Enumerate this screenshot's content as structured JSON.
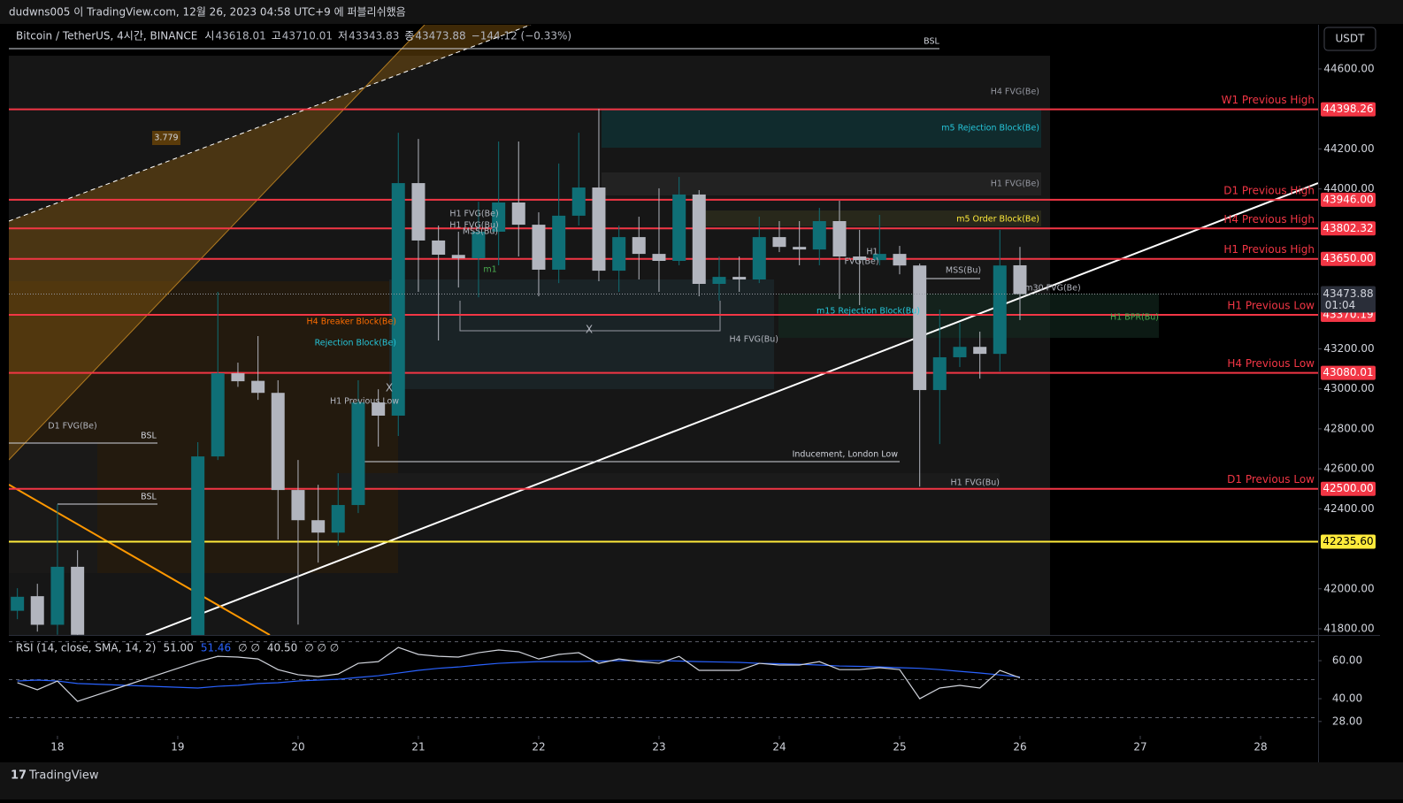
{
  "header": {
    "published": "dudwns005 이 TradingView.com, 12월 26, 2023 04:58 UTC+9 에 퍼블리쉬했음",
    "brand": "TradingView",
    "currency": "USDT"
  },
  "chart_data": {
    "type": "candlestick",
    "legend": {
      "symbol": "Bitcoin / TetherUS, 4시간, BINANCE",
      "open_label": "시",
      "high_label": "고",
      "low_label": "저",
      "close_label": "종",
      "change": "−144.12 (−0.33%)"
    },
    "candles": {
      "x": [
        17.667,
        17.833,
        18,
        18.167,
        19.167,
        19.333,
        19.5,
        19.667,
        19.833,
        20,
        20.167,
        20.333,
        20.5,
        20.667,
        20.833,
        21,
        21.167,
        21.333,
        21.5,
        21.667,
        21.833,
        22,
        22.167,
        22.333,
        22.5,
        22.667,
        22.833,
        23,
        23.167,
        23.333,
        23.5,
        23.667,
        23.833,
        24,
        24.167,
        24.333,
        24.5,
        24.667,
        24.833,
        25,
        25.167,
        25.333,
        25.5,
        25.667,
        25.833,
        26
      ],
      "open": [
        41890,
        41963,
        41820,
        42110,
        41750,
        42662,
        43078,
        43040,
        42980,
        42494,
        42343,
        42281,
        42419,
        42932,
        42866,
        44029,
        43742,
        43670,
        43653,
        43786,
        43932,
        43821,
        43596,
        43866,
        44007,
        43591,
        43759,
        43675,
        43640,
        43972,
        43525,
        43560,
        43547,
        43759,
        43710,
        43697,
        43839,
        43662,
        43644,
        43675,
        43617,
        42994,
        43158,
        43210,
        43175,
        43618.01
      ],
      "high": [
        42003,
        42025,
        42423,
        42193,
        42733,
        43485,
        43131,
        43264,
        43043,
        42644,
        42520,
        42578,
        43043,
        42998,
        44281,
        44250,
        43817,
        43786,
        43936,
        44237,
        44237,
        43883,
        44127,
        44281,
        44401,
        43817,
        43861,
        44003,
        44060,
        43994,
        43662,
        43662,
        43861,
        43839,
        43839,
        43905,
        43941,
        43795,
        43870,
        43715,
        43627,
        43396,
        43330,
        43286,
        43795,
        43710.01
      ],
      "low": [
        41848,
        41786,
        41770,
        41700,
        41650,
        42644,
        43010,
        42945,
        42246,
        41821,
        42131,
        42215,
        42379,
        42711,
        42764,
        43485,
        43242,
        43507,
        43458,
        43618,
        43662,
        43463,
        43529,
        43817,
        43538,
        43485,
        43547,
        43485,
        43618,
        43463,
        43441,
        43485,
        43529,
        43684,
        43618,
        43618,
        43450,
        43419,
        43618,
        43573,
        42511,
        42724,
        43109,
        43051,
        43087,
        43343.83
      ],
      "close": [
        41960,
        41820,
        42110,
        41770,
        42662,
        43078,
        43038,
        42980,
        42494,
        42343,
        42281,
        42419,
        42932,
        42866,
        44029,
        43742,
        43671,
        43653,
        43786,
        43932,
        43821,
        43596,
        43866,
        44007,
        43591,
        43759,
        43675,
        43640,
        43972,
        43525,
        43560,
        43547,
        43759,
        43710,
        43697,
        43839,
        43662,
        43644,
        43675,
        43617,
        42994,
        43158,
        43210,
        43175,
        43617,
        43473.88
      ],
      "up_color": "#0f6f76",
      "down_color": "#b2b5be"
    },
    "countdown": "01:04",
    "xlim": [
      17.596,
      28.478
    ],
    "xticks": [
      18,
      19,
      20,
      21,
      22,
      23,
      24,
      25,
      26,
      27,
      28
    ],
    "ylim": [
      41769,
      44821
    ],
    "yticks": [
      {
        "value": 44600,
        "label": "44600.00"
      },
      {
        "value": 44200,
        "label": "44200.00"
      },
      {
        "value": 44000,
        "label": "44000.00"
      },
      {
        "value": 43200,
        "label": "43200.00"
      },
      {
        "value": 43000,
        "label": "43000.00"
      },
      {
        "value": 42800,
        "label": "42800.00"
      },
      {
        "value": 42600,
        "label": "42600.00"
      },
      {
        "value": 42400,
        "label": "42400.00"
      },
      {
        "value": 42000,
        "label": "42000.00"
      },
      {
        "value": 41800,
        "label": "41800.00"
      }
    ],
    "levels": {
      "names": [
        "W1 Previous High",
        "D1 Previous High",
        "H4 Previous High",
        "H1 Previous High",
        "H1 Previous Low",
        "H4 Previous Low",
        "D1 Previous Low",
        null
      ],
      "values": [
        44398.26,
        43946,
        43802.32,
        43650,
        43370.19,
        43080.01,
        42500,
        42235.6
      ],
      "value_labels": [
        "44398.26",
        "43946.00",
        "43802.32",
        "43650.00",
        "43370.19",
        "43080.01",
        "42500.00",
        "42235.60"
      ],
      "colors": [
        "#f23645",
        "#f23645",
        "#f23645",
        "#f23645",
        "#f23645",
        "#f23645",
        "#f23645",
        "#ffeb3b"
      ]
    },
    "annotations": [
      {
        "text": "BSL",
        "color": "#d1d4dc"
      },
      {
        "text": "H4 FVG(Be)",
        "color": "#9598a1"
      },
      {
        "text": "m5 Rejection Block(Be)",
        "color": "#26c6da"
      },
      {
        "text": "3.779",
        "color": "#d1d4dc"
      },
      {
        "text": "H1 FVG(Be)",
        "color": "#9598a1"
      },
      {
        "text": "m5 Order Block(Be)",
        "color": "#ffeb3b"
      },
      {
        "text": "H1 FVG(Be)",
        "color": "#b2b5be"
      },
      {
        "text": "H1 FVG(Bu)",
        "color": "#b2b5be"
      },
      {
        "text": "MSS(Bu)",
        "color": "#b2b5be"
      },
      {
        "text": "m1",
        "color": "#4caf50"
      },
      {
        "text": "H1",
        "color": "#b2b5be"
      },
      {
        "text": "FVG(Be)",
        "color": "#b2b5be"
      },
      {
        "text": "MSS(Bu)",
        "color": "#b2b5be"
      },
      {
        "text": "m30 FVG(Be)",
        "color": "#b2b5be"
      },
      {
        "text": "H4 Breaker Block(Be)",
        "color": "#ff6d00"
      },
      {
        "text": "m15 Rejection Block(Bu)",
        "color": "#26c6da"
      },
      {
        "text": "X",
        "color": "#b2b5be"
      },
      {
        "text": "X",
        "color": "#b2b5be"
      },
      {
        "text": "H1 BPR(Bu)",
        "color": "#4caf50"
      },
      {
        "text": "Rejection Block(Be)",
        "color": "#26c6da"
      },
      {
        "text": "H4 FVG(Bu)",
        "color": "#b2b5be"
      },
      {
        "text": "H1 Previous Low",
        "color": "#b2b5be"
      },
      {
        "text": "D1 FVG(Be)",
        "color": "#b2b5be"
      },
      {
        "text": "BSL",
        "color": "#d1d4dc"
      },
      {
        "text": "BSL",
        "color": "#d1d4dc"
      },
      {
        "text": "Inducement, London Low",
        "color": "#d1d4dc"
      },
      {
        "text": "H1 FVG(Bu)",
        "color": "#b2b5be"
      }
    ],
    "rsi": {
      "title": "RSI (14, close, SMA, 14, 2)",
      "value_label": "51.00",
      "extra1": "∅ ∅",
      "extra2": "40.50",
      "extra3": "∅ ∅ ∅",
      "color": "#d1d4dc",
      "ma_color": "#2962ff",
      "values": [
        48.4,
        44.7,
        49.3,
        38.6,
        59.5,
        62.3,
        61.9,
        60.9,
        55.3,
        52.6,
        51.6,
        53,
        58.6,
        59.5,
        67,
        63.3,
        62.3,
        61.9,
        64.2,
        65.6,
        64.7,
        60.9,
        63.3,
        64.2,
        58.6,
        60.9,
        59.5,
        58.6,
        62.3,
        54.9,
        54.9,
        54.9,
        58.6,
        57.7,
        57.7,
        59.5,
        55.3,
        55.3,
        56.3,
        55.3,
        40,
        45.6,
        47,
        45.6,
        54.9,
        51
      ],
      "ma": [
        49.3,
        49.8,
        49.3,
        48,
        45.6,
        46.5,
        47,
        48,
        48.4,
        49.3,
        49.8,
        50.2,
        51.2,
        52.1,
        53.5,
        54.9,
        56,
        56.7,
        57.7,
        58.6,
        59.1,
        59.5,
        59.5,
        59.5,
        59.8,
        60,
        60,
        60,
        59.8,
        59.5,
        59.3,
        59.1,
        58.6,
        58.4,
        58.1,
        57.7,
        57.2,
        57,
        56.7,
        56.3,
        56,
        55.3,
        54.4,
        53.5,
        52.5,
        51.46
      ],
      "ylim": [
        21.4,
        72.6
      ],
      "bands": [
        70,
        50,
        30
      ],
      "yticks": [
        {
          "value": 60,
          "label": "60.00"
        },
        {
          "value": 40,
          "label": "40.00"
        },
        {
          "value": 28,
          "label": "28.00"
        }
      ]
    }
  }
}
